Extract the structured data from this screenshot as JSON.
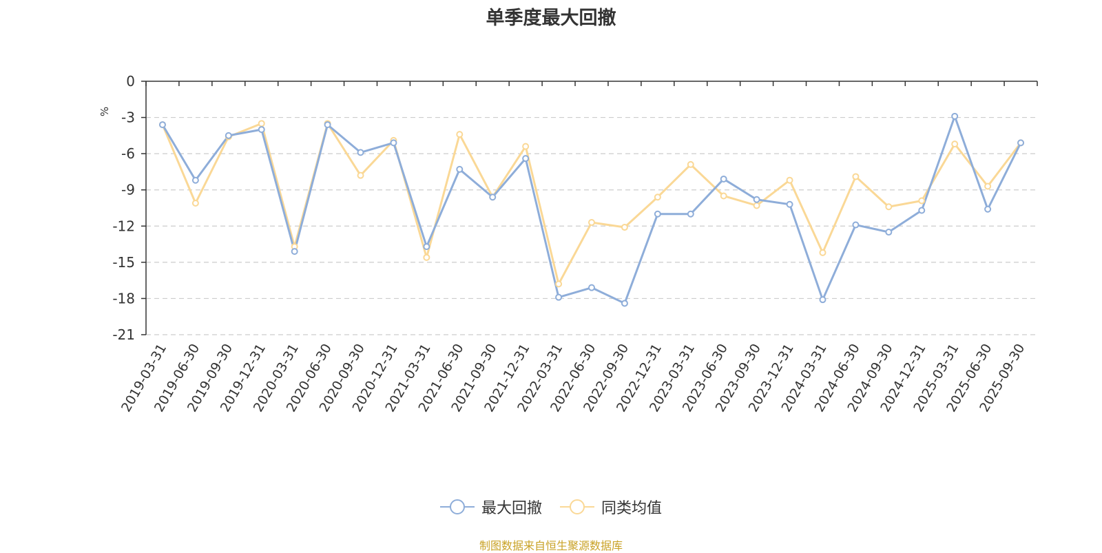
{
  "chart_data": {
    "type": "line",
    "title": "单季度最大回撤",
    "ylabel": "%",
    "ylim": [
      -21,
      0
    ],
    "yticks": [
      0,
      -3,
      -6,
      -9,
      -12,
      -15,
      -18,
      -21
    ],
    "grid": true,
    "legend_position": "bottom",
    "categories": [
      "2019-03-31",
      "2019-06-30",
      "2019-09-30",
      "2019-12-31",
      "2020-03-31",
      "2020-06-30",
      "2020-09-30",
      "2020-12-31",
      "2021-03-31",
      "2021-06-30",
      "2021-09-30",
      "2021-12-31",
      "2022-03-31",
      "2022-06-30",
      "2022-09-30",
      "2022-12-31",
      "2023-03-31",
      "2023-06-30",
      "2023-09-30",
      "2023-12-31",
      "2024-03-31",
      "2024-06-30",
      "2024-09-30",
      "2024-12-31",
      "2025-03-31",
      "2025-06-30",
      "2025-09-30"
    ],
    "series": [
      {
        "name": "最大回撤",
        "color": "#8eadd9",
        "values": [
          -3.6,
          -8.2,
          -4.5,
          -4.0,
          -14.1,
          -3.6,
          -5.9,
          -5.1,
          -13.7,
          -7.3,
          -9.6,
          -6.4,
          -17.9,
          -17.1,
          -18.4,
          -11.0,
          -11.0,
          -8.1,
          -9.8,
          -10.2,
          -18.1,
          -11.9,
          -12.5,
          -10.7,
          -2.9,
          -10.6,
          -5.1
        ]
      },
      {
        "name": "同类均值",
        "color": "#fad896",
        "values": [
          -3.6,
          -10.1,
          -4.6,
          -3.5,
          -13.7,
          -3.5,
          -7.8,
          -4.9,
          -14.6,
          -4.4,
          -9.6,
          -5.4,
          -16.8,
          -11.7,
          -12.1,
          -9.6,
          -6.9,
          -9.5,
          -10.3,
          -8.2,
          -14.2,
          -7.9,
          -10.4,
          -9.9,
          -5.2,
          -8.7,
          -5.1
        ]
      }
    ]
  },
  "source_note": "制图数据来自恒生聚源数据库"
}
